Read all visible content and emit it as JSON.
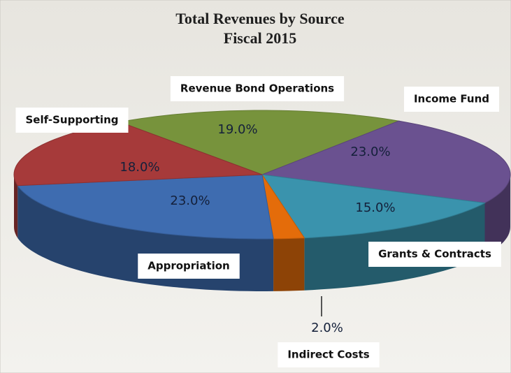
{
  "chart_data": {
    "type": "pie3d",
    "title": "Total Revenues by Source",
    "subtitle": "Fiscal 2015",
    "categories": [
      "Revenue Bond Operations",
      "Income Fund",
      "Grants & Contracts",
      "Indirect Costs",
      "Appropriation",
      "Self-Supporting"
    ],
    "values": [
      19.0,
      23.0,
      15.0,
      2.0,
      23.0,
      18.0
    ],
    "value_labels": [
      "19.0%",
      "23.0%",
      "15.0%",
      "2.0%",
      "23.0%",
      "18.0%"
    ],
    "colors": [
      "#77933c",
      "#6a5190",
      "#3a93ad",
      "#e46c0a",
      "#3e6cb0",
      "#a63a3a"
    ]
  }
}
